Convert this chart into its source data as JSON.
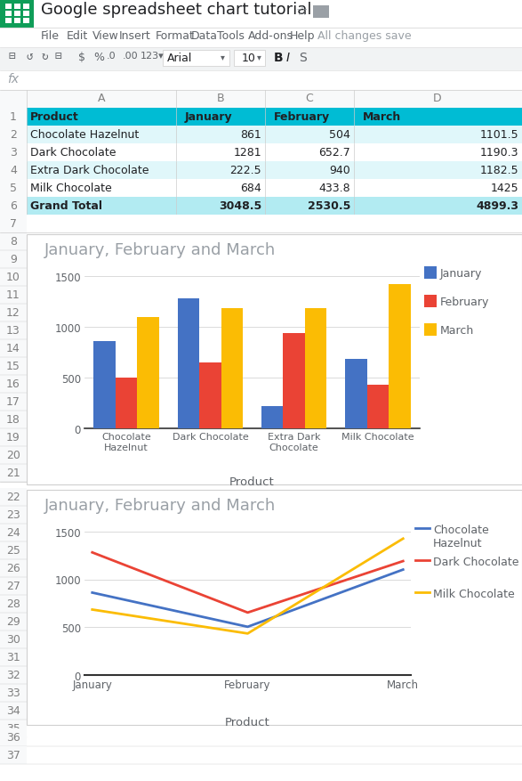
{
  "title_bar": "Google spreadsheet chart tutorial",
  "col_A": [
    "Product",
    "Chocolate Hazelnut",
    "Dark Chocolate",
    "Extra Dark Chocolate",
    "Milk Chocolate",
    "Grand Total"
  ],
  "col_B": [
    "January",
    861,
    1281,
    222.5,
    684,
    3048.5
  ],
  "col_C": [
    "February",
    504,
    652.7,
    940,
    433.8,
    2530.5
  ],
  "col_D": [
    "March",
    1101.5,
    1190.3,
    1182.5,
    1425,
    4899.3
  ],
  "row_bgs": [
    "#00BCD4",
    "#E0F7FA",
    "#FFFFFF",
    "#E0F7FA",
    "#FFFFFF",
    "#B2EBF2"
  ],
  "header_cyan": "#00BCD4",
  "grand_total_bg": "#B2EBF2",
  "bar_chart": {
    "title": "January, February and March",
    "categories": [
      "Chocolate\nHazelnut",
      "Dark Chocolate",
      "Extra Dark\nChocolate",
      "Milk Chocolate"
    ],
    "january": [
      861,
      1281,
      222.5,
      684
    ],
    "february": [
      504,
      652.7,
      940,
      433.8
    ],
    "march": [
      1101.5,
      1190.3,
      1182.5,
      1425
    ],
    "jan_color": "#4472C4",
    "feb_color": "#EA4335",
    "mar_color": "#FBBC04",
    "ylim": [
      0,
      1600
    ],
    "yticks": [
      0,
      500,
      1000,
      1500
    ],
    "xlabel": "Product",
    "legend_labels": [
      "January",
      "February",
      "March"
    ]
  },
  "line_chart": {
    "title": "January, February and March",
    "months": [
      "January",
      "February",
      "March"
    ],
    "chocolate_hazelnut": [
      861,
      504,
      1101.5
    ],
    "dark_chocolate": [
      1281,
      652.7,
      1190.3
    ],
    "milk_chocolate": [
      684,
      433.8,
      1425
    ],
    "ch_color": "#4472C4",
    "dc_color": "#EA4335",
    "mc_color": "#FBBC04",
    "ylim": [
      0,
      1600
    ],
    "yticks": [
      0,
      500,
      1000,
      1500
    ],
    "xlabel": "Product",
    "legend_labels": [
      "Chocolate\nHazelnut",
      "Dark Chocolate",
      "Milk Chocolate"
    ]
  }
}
